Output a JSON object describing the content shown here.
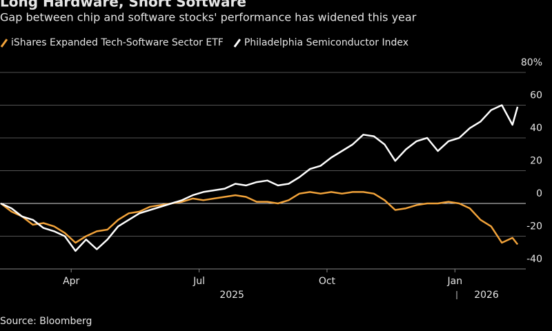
{
  "chart_data": {
    "type": "line",
    "title": "Long Hardware, Short Software",
    "subtitle": "Gap between chip and software stocks' performance has widened this year",
    "source": "Source: Bloomberg",
    "x": [
      1.35,
      1.6,
      1.85,
      2.1,
      2.35,
      2.6,
      2.85,
      3.1,
      3.35,
      3.6,
      3.85,
      4.1,
      4.35,
      4.6,
      4.85,
      5.1,
      5.35,
      5.6,
      5.85,
      6.1,
      6.35,
      6.6,
      6.85,
      7.1,
      7.35,
      7.6,
      7.85,
      8.1,
      8.35,
      8.6,
      8.85,
      9.1,
      9.35,
      9.6,
      9.85,
      10.1,
      10.35,
      10.6,
      10.85,
      11.1,
      11.35,
      11.6,
      11.85,
      12.1,
      12.35,
      12.6,
      12.85,
      13.1,
      13.35,
      13.47
    ],
    "series": [
      {
        "name": "iShares Expanded Tech-Software Sector ETF",
        "color": "#f2a33a",
        "values": [
          0,
          -5,
          -8,
          -13,
          -12,
          -14,
          -18,
          -24,
          -20,
          -17,
          -16,
          -10,
          -6,
          -5,
          -2,
          -1,
          0,
          1,
          3,
          2,
          3,
          4,
          5,
          4,
          1,
          1,
          0,
          2,
          6,
          7,
          6,
          7,
          6,
          7,
          7,
          6,
          2,
          -4,
          -3,
          -1,
          0,
          0,
          1,
          0,
          -3,
          -10,
          -14,
          -24,
          -21,
          -25
        ]
      },
      {
        "name": "Philadelphia Semiconductor Index",
        "color": "#ffffff",
        "values": [
          0,
          -3,
          -8,
          -10,
          -15,
          -17,
          -20,
          -29,
          -22,
          -28,
          -22,
          -14,
          -10,
          -6,
          -4,
          -2,
          0,
          2,
          5,
          7,
          8,
          9,
          12,
          11,
          13,
          14,
          11,
          12,
          16,
          21,
          23,
          28,
          32,
          36,
          42,
          41,
          36,
          26,
          33,
          38,
          40,
          32,
          38,
          40,
          46,
          50,
          57,
          60,
          48,
          59
        ]
      }
    ],
    "xlim": [
      1.33,
      13.5
    ],
    "xticks": [
      {
        "value": 3,
        "label": "Apr"
      },
      {
        "value": 6,
        "label": "Jul"
      },
      {
        "value": 9,
        "label": "Oct"
      },
      {
        "value": 12,
        "label": "Jan"
      }
    ],
    "year_labels": [
      {
        "value": 6.77,
        "label": "2025"
      },
      {
        "value": 12.74,
        "label": "2026"
      }
    ],
    "ylim": [
      -40,
      80
    ],
    "yticks": [
      -40,
      -20,
      0,
      20,
      40,
      60,
      {
        "value": 80,
        "label": "80%"
      }
    ],
    "grid": true
  }
}
